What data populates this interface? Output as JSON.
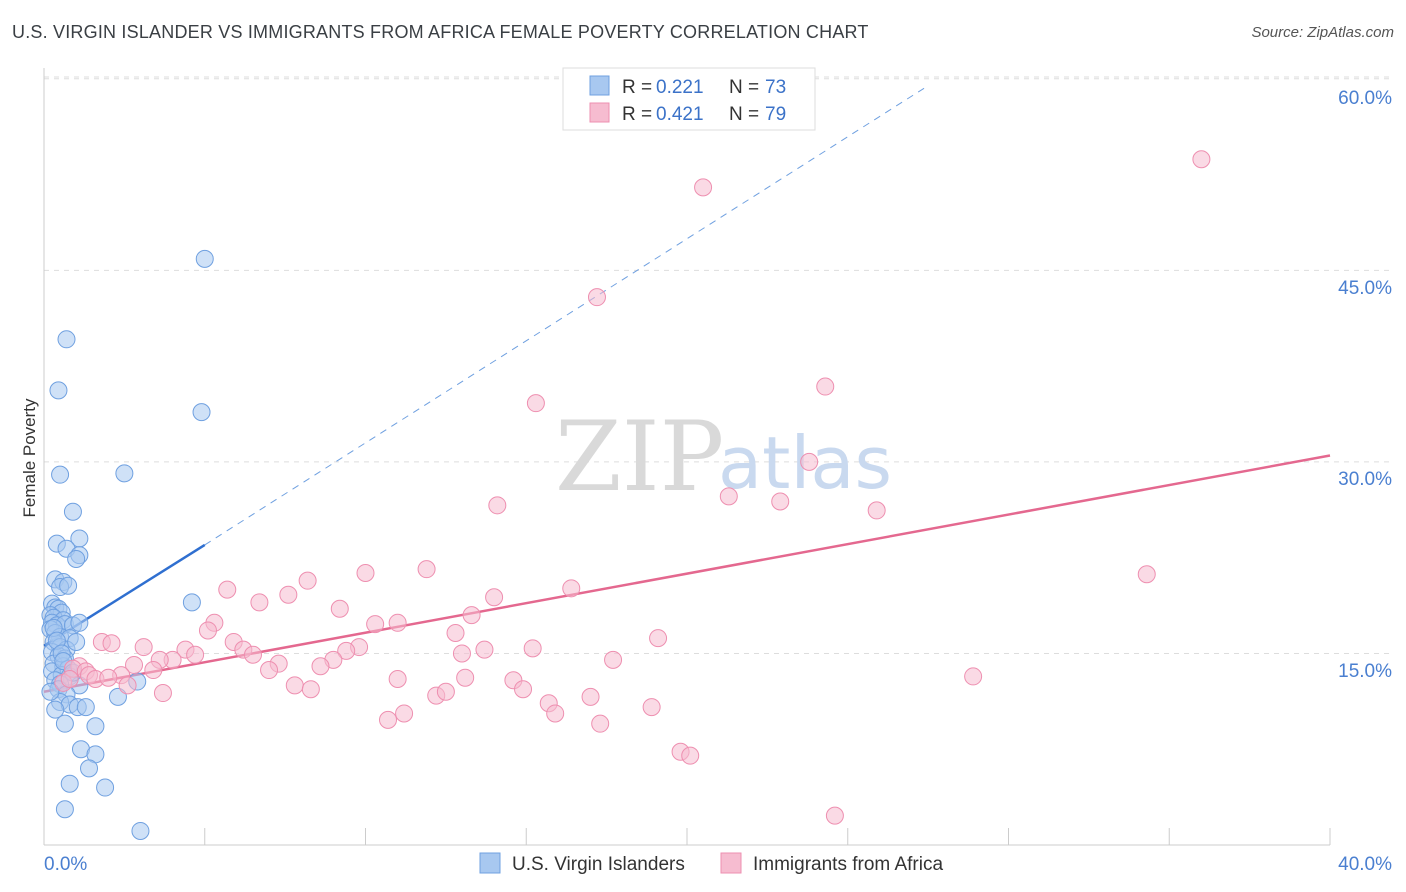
{
  "header": {
    "title": "U.S. VIRGIN ISLANDER VS IMMIGRANTS FROM AFRICA FEMALE POVERTY CORRELATION CHART",
    "source": "Source: ZipAtlas.com"
  },
  "watermark": {
    "zip": "ZIP",
    "atlas": "atlas"
  },
  "colors": {
    "blue_fill": "#a8c8f0",
    "blue_stroke": "#6fa0e0",
    "blue_line": "#2f6fd0",
    "pink_fill": "#f6bcd0",
    "pink_stroke": "#ee8fb0",
    "pink_line": "#e4688f",
    "grid": "#dddddd",
    "axis_label": "#4a7fd0"
  },
  "chart_data": {
    "type": "scatter",
    "title": "U.S. VIRGIN ISLANDER VS IMMIGRANTS FROM AFRICA FEMALE POVERTY CORRELATION CHART",
    "xlabel": "",
    "ylabel": "Female Poverty",
    "xlim": [
      0,
      40
    ],
    "ylim": [
      0,
      60
    ],
    "x_tick_labels": [
      "0.0%",
      "40.0%"
    ],
    "y_ticks": [
      15,
      30,
      45,
      60
    ],
    "y_tick_labels": [
      "15.0%",
      "30.0%",
      "45.0%",
      "60.0%"
    ],
    "grid": true,
    "legend": [
      {
        "name": "U.S. Virgin Islanders",
        "r_label": "R =",
        "r_value": "0.221",
        "n_label": "N =",
        "n_value": "73"
      },
      {
        "name": "Immigrants from Africa",
        "r_label": "R =",
        "r_value": "0.421",
        "n_label": "N =",
        "n_value": "79"
      }
    ],
    "series": [
      {
        "name": "U.S. Virgin Islanders",
        "trend_solid": [
          [
            0,
            15.6
          ],
          [
            5.0,
            23.5
          ]
        ],
        "trend_dashed": [
          [
            5.0,
            23.5
          ],
          [
            27.4,
            59.3
          ]
        ],
        "points": [
          [
            5.0,
            45.9
          ],
          [
            0.7,
            39.6
          ],
          [
            0.45,
            35.6
          ],
          [
            4.9,
            33.9
          ],
          [
            2.5,
            29.1
          ],
          [
            0.5,
            29.0
          ],
          [
            0.9,
            26.1
          ],
          [
            1.1,
            24.0
          ],
          [
            0.4,
            23.6
          ],
          [
            0.7,
            23.2
          ],
          [
            1.1,
            22.7
          ],
          [
            1.0,
            22.4
          ],
          [
            0.35,
            20.8
          ],
          [
            0.6,
            20.6
          ],
          [
            0.5,
            20.2
          ],
          [
            0.75,
            20.3
          ],
          [
            0.25,
            18.9
          ],
          [
            0.35,
            18.6
          ],
          [
            0.45,
            18.5
          ],
          [
            0.55,
            18.2
          ],
          [
            0.2,
            18.0
          ],
          [
            0.3,
            17.8
          ],
          [
            0.6,
            17.6
          ],
          [
            0.25,
            17.4
          ],
          [
            0.4,
            17.2
          ],
          [
            0.65,
            17.3
          ],
          [
            0.9,
            17.2
          ],
          [
            1.1,
            17.4
          ],
          [
            0.2,
            16.9
          ],
          [
            0.35,
            16.6
          ],
          [
            0.5,
            16.3
          ],
          [
            0.8,
            16.2
          ],
          [
            0.3,
            15.9
          ],
          [
            0.5,
            15.5
          ],
          [
            0.7,
            15.3
          ],
          [
            1.0,
            15.9
          ],
          [
            0.25,
            15.1
          ],
          [
            0.45,
            14.8
          ],
          [
            0.65,
            14.6
          ],
          [
            0.3,
            14.2
          ],
          [
            0.6,
            14.0
          ],
          [
            0.75,
            13.8
          ],
          [
            0.25,
            13.6
          ],
          [
            0.55,
            13.3
          ],
          [
            0.8,
            13.2
          ],
          [
            0.35,
            12.9
          ],
          [
            0.5,
            12.6
          ],
          [
            1.1,
            12.5
          ],
          [
            2.9,
            12.8
          ],
          [
            0.45,
            12.2
          ],
          [
            0.7,
            11.8
          ],
          [
            2.3,
            11.6
          ],
          [
            0.5,
            11.2
          ],
          [
            0.8,
            11.0
          ],
          [
            1.05,
            10.8
          ],
          [
            0.35,
            10.6
          ],
          [
            1.3,
            10.8
          ],
          [
            0.65,
            9.5
          ],
          [
            1.6,
            9.3
          ],
          [
            1.15,
            7.5
          ],
          [
            1.6,
            7.1
          ],
          [
            1.4,
            6.0
          ],
          [
            0.8,
            4.8
          ],
          [
            1.9,
            4.5
          ],
          [
            0.65,
            2.8
          ],
          [
            3.0,
            1.1
          ],
          [
            4.6,
            19.0
          ],
          [
            0.3,
            17.0
          ],
          [
            0.4,
            16.0
          ],
          [
            0.55,
            15.0
          ],
          [
            0.6,
            14.4
          ],
          [
            0.9,
            13.5
          ],
          [
            0.2,
            12.0
          ]
        ]
      },
      {
        "name": "Immigrants from Africa",
        "trend_solid": [
          [
            0,
            12.0
          ],
          [
            40,
            30.5
          ]
        ],
        "points": [
          [
            36.0,
            53.7
          ],
          [
            20.5,
            51.5
          ],
          [
            17.2,
            42.9
          ],
          [
            24.3,
            35.9
          ],
          [
            15.3,
            34.6
          ],
          [
            23.8,
            30.0
          ],
          [
            14.1,
            26.6
          ],
          [
            21.3,
            27.3
          ],
          [
            22.9,
            26.9
          ],
          [
            25.9,
            26.2
          ],
          [
            11.9,
            21.6
          ],
          [
            10.0,
            21.3
          ],
          [
            34.3,
            21.2
          ],
          [
            8.2,
            20.7
          ],
          [
            5.7,
            20.0
          ],
          [
            16.4,
            20.1
          ],
          [
            7.6,
            19.6
          ],
          [
            6.7,
            19.0
          ],
          [
            14.0,
            19.4
          ],
          [
            9.2,
            18.5
          ],
          [
            13.3,
            18.0
          ],
          [
            5.3,
            17.4
          ],
          [
            10.3,
            17.3
          ],
          [
            11.0,
            17.4
          ],
          [
            5.1,
            16.8
          ],
          [
            12.8,
            16.6
          ],
          [
            19.1,
            16.2
          ],
          [
            5.9,
            15.9
          ],
          [
            1.8,
            15.9
          ],
          [
            2.1,
            15.8
          ],
          [
            3.1,
            15.5
          ],
          [
            4.4,
            15.3
          ],
          [
            6.2,
            15.3
          ],
          [
            9.8,
            15.5
          ],
          [
            9.4,
            15.2
          ],
          [
            13.7,
            15.3
          ],
          [
            15.2,
            15.4
          ],
          [
            13.0,
            15.0
          ],
          [
            6.5,
            14.9
          ],
          [
            4.7,
            14.9
          ],
          [
            4.0,
            14.5
          ],
          [
            3.6,
            14.5
          ],
          [
            7.3,
            14.2
          ],
          [
            9.0,
            14.5
          ],
          [
            8.6,
            14.0
          ],
          [
            2.8,
            14.1
          ],
          [
            1.1,
            14.0
          ],
          [
            0.9,
            13.8
          ],
          [
            1.3,
            13.6
          ],
          [
            3.4,
            13.7
          ],
          [
            7.0,
            13.7
          ],
          [
            17.7,
            14.5
          ],
          [
            2.4,
            13.3
          ],
          [
            1.4,
            13.3
          ],
          [
            1.6,
            13.0
          ],
          [
            11.0,
            13.0
          ],
          [
            13.1,
            13.1
          ],
          [
            14.6,
            12.9
          ],
          [
            28.9,
            13.2
          ],
          [
            0.6,
            12.7
          ],
          [
            2.6,
            12.5
          ],
          [
            7.8,
            12.5
          ],
          [
            8.3,
            12.2
          ],
          [
            14.9,
            12.2
          ],
          [
            3.7,
            11.9
          ],
          [
            12.2,
            11.7
          ],
          [
            17.0,
            11.6
          ],
          [
            12.5,
            12.0
          ],
          [
            15.7,
            11.1
          ],
          [
            18.9,
            10.8
          ],
          [
            11.2,
            10.3
          ],
          [
            10.7,
            9.8
          ],
          [
            15.9,
            10.3
          ],
          [
            17.3,
            9.5
          ],
          [
            19.8,
            7.3
          ],
          [
            20.1,
            7.0
          ],
          [
            24.6,
            2.3
          ],
          [
            0.8,
            13.0
          ],
          [
            2.0,
            13.1
          ]
        ]
      }
    ]
  }
}
